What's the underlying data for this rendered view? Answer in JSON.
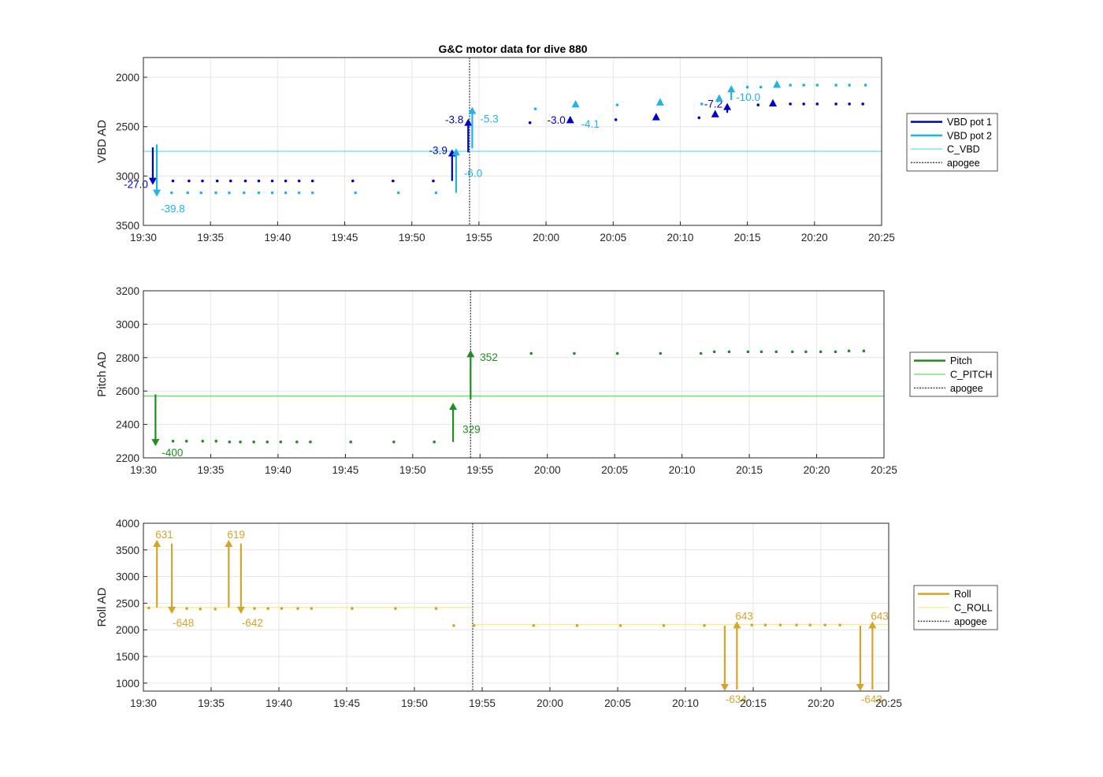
{
  "figure": {
    "title": "G&C motor data for dive 880"
  },
  "chart_data": [
    {
      "type": "scatter",
      "id": "vbd",
      "ylabel": "VBD AD",
      "xlim": [
        "19:30",
        "20:25"
      ],
      "ylim": [
        1800,
        3500
      ],
      "y_reversed": true,
      "xticks": [
        "19:30",
        "19:35",
        "19:40",
        "19:45",
        "19:50",
        "19:55",
        "20:00",
        "20:05",
        "20:10",
        "20:15",
        "20:20",
        "20:25"
      ],
      "yticks": [
        2000,
        2500,
        3000,
        3500
      ],
      "grid": true,
      "legend_position": "outside-right",
      "legend": [
        {
          "label": "VBD pot 1",
          "style": "thick",
          "color": "#0000cd"
        },
        {
          "label": "VBD pot 2",
          "style": "thick",
          "color": "#1eb4e6"
        },
        {
          "label": "C_VBD",
          "style": "thin",
          "color": "#66e0e8"
        },
        {
          "label": "apogee",
          "style": "dotted",
          "color": "#444444"
        }
      ],
      "apogee_x": "19:54.3",
      "reference_lines": [
        {
          "name": "C_VBD",
          "y": 2750,
          "from": "19:30",
          "to": "20:25",
          "color": "#66e0e8"
        }
      ],
      "series": [
        {
          "name": "VBD pot 1",
          "color": "#0000cd",
          "points": [
            [
              "19:32.2",
              3050
            ],
            [
              "19:33.4",
              3050
            ],
            [
              "19:34.4",
              3050
            ],
            [
              "19:35.5",
              3050
            ],
            [
              "19:36.5",
              3050
            ],
            [
              "19:37.6",
              3050
            ],
            [
              "19:38.6",
              3050
            ],
            [
              "19:39.6",
              3050
            ],
            [
              "19:40.6",
              3050
            ],
            [
              "19:41.6",
              3050
            ],
            [
              "19:42.6",
              3050
            ],
            [
              "19:45.6",
              3050
            ],
            [
              "19:48.6",
              3050
            ],
            [
              "19:51.6",
              3050
            ],
            [
              "19:58.8",
              2460
            ],
            [
              "20:05.2",
              2430
            ],
            [
              "20:11.4",
              2410
            ],
            [
              "20:15.8",
              2280
            ],
            [
              "20:18.2",
              2270
            ],
            [
              "20:19.2",
              2270
            ],
            [
              "20:20.2",
              2270
            ],
            [
              "20:21.6",
              2270
            ],
            [
              "20:22.6",
              2270
            ],
            [
              "20:23.6",
              2270
            ]
          ],
          "markers": [
            [
              "20:01.8",
              2430
            ],
            [
              "20:08.2",
              2400
            ],
            [
              "20:12.6",
              2370
            ],
            [
              "20:16.9",
              2260
            ]
          ],
          "moves": [
            {
              "x": "19:30.7",
              "y0": 2710,
              "y1": 3090,
              "label": "-27.0"
            },
            {
              "x": "19:53.0",
              "y0": 3050,
              "y1": 2730,
              "label": "-3.9"
            },
            {
              "x": "19:54.2",
              "y0": 2760,
              "y1": 2420,
              "label": "-3.8"
            },
            {
              "x": "20:01.8",
              "y0": null,
              "y1": 2430,
              "label": "-3.0"
            },
            {
              "x": "20:13.5",
              "y0": 2360,
              "y1": 2260,
              "label": "-7.2"
            }
          ]
        },
        {
          "name": "VBD pot 2",
          "color": "#1eb4e6",
          "points": [
            [
              "19:32.1",
              3170
            ],
            [
              "19:33.3",
              3170
            ],
            [
              "19:34.3",
              3170
            ],
            [
              "19:35.4",
              3170
            ],
            [
              "19:36.4",
              3170
            ],
            [
              "19:37.5",
              3170
            ],
            [
              "19:38.6",
              3170
            ],
            [
              "19:39.6",
              3170
            ],
            [
              "19:40.6",
              3170
            ],
            [
              "19:41.6",
              3170
            ],
            [
              "19:42.6",
              3170
            ],
            [
              "19:45.8",
              3170
            ],
            [
              "19:49.0",
              3170
            ],
            [
              "19:51.8",
              3170
            ],
            [
              "19:59.2",
              2320
            ],
            [
              "20:05.3",
              2280
            ],
            [
              "20:11.6",
              2270
            ],
            [
              "20:15.0",
              2100
            ],
            [
              "20:16.0",
              2100
            ],
            [
              "20:18.2",
              2080
            ],
            [
              "20:19.2",
              2080
            ],
            [
              "20:20.2",
              2080
            ],
            [
              "20:21.6",
              2080
            ],
            [
              "20:22.6",
              2080
            ],
            [
              "20:23.8",
              2080
            ]
          ],
          "markers": [
            [
              "20:02.2",
              2270
            ],
            [
              "20:08.5",
              2250
            ],
            [
              "20:12.9",
              2210
            ],
            [
              "20:17.2",
              2070
            ]
          ],
          "moves": [
            {
              "x": "19:31.0",
              "y0": 2680,
              "y1": 3210,
              "label": "-39.8"
            },
            {
              "x": "19:53.3",
              "y0": 3170,
              "y1": 2720,
              "label": "-6.0"
            },
            {
              "x": "19:54.5",
              "y0": 2720,
              "y1": 2300,
              "label": "-5.3"
            },
            {
              "x": "20:02.2",
              "y0": null,
              "y1": 2270,
              "label": "-4.1"
            },
            {
              "x": "20:13.8",
              "y0": 2230,
              "y1": 2080,
              "label": "-10.0"
            }
          ]
        }
      ]
    },
    {
      "type": "scatter",
      "id": "pitch",
      "ylabel": "Pitch AD",
      "xlim": [
        "19:30",
        "20:25"
      ],
      "ylim": [
        2200,
        3200
      ],
      "y_reversed": false,
      "xticks": [
        "19:30",
        "19:35",
        "19:40",
        "19:45",
        "19:50",
        "19:55",
        "20:00",
        "20:05",
        "20:10",
        "20:15",
        "20:20",
        "20:25"
      ],
      "yticks": [
        2200,
        2400,
        2600,
        2800,
        3000,
        3200
      ],
      "grid": true,
      "legend_position": "outside-right",
      "legend": [
        {
          "label": "Pitch",
          "style": "thick",
          "color": "#228b22"
        },
        {
          "label": "C_PITCH",
          "style": "thin",
          "color": "#66dd66"
        },
        {
          "label": "apogee",
          "style": "dotted",
          "color": "#444444"
        }
      ],
      "apogee_x": "19:54.3",
      "reference_lines": [
        {
          "name": "C_PITCH",
          "y": 2570,
          "from": "19:30",
          "to": "20:25",
          "color": "#66dd66"
        }
      ],
      "series": [
        {
          "name": "Pitch",
          "color": "#228b22",
          "points": [
            [
              "19:32.2",
              2300
            ],
            [
              "19:33.2",
              2300
            ],
            [
              "19:34.4",
              2300
            ],
            [
              "19:35.4",
              2300
            ],
            [
              "19:36.4",
              2295
            ],
            [
              "19:37.2",
              2295
            ],
            [
              "19:38.2",
              2295
            ],
            [
              "19:39.2",
              2295
            ],
            [
              "19:40.2",
              2295
            ],
            [
              "19:41.4",
              2295
            ],
            [
              "19:42.4",
              2295
            ],
            [
              "19:45.4",
              2295
            ],
            [
              "19:48.6",
              2295
            ],
            [
              "19:51.6",
              2295
            ],
            [
              "19:58.8",
              2825
            ],
            [
              "20:02.0",
              2825
            ],
            [
              "20:05.2",
              2825
            ],
            [
              "20:08.4",
              2825
            ],
            [
              "20:11.4",
              2825
            ],
            [
              "20:12.4",
              2835
            ],
            [
              "20:13.5",
              2835
            ],
            [
              "20:14.9",
              2835
            ],
            [
              "20:15.9",
              2835
            ],
            [
              "20:17.0",
              2835
            ],
            [
              "20:18.2",
              2835
            ],
            [
              "20:19.2",
              2835
            ],
            [
              "20:20.3",
              2835
            ],
            [
              "20:21.4",
              2835
            ],
            [
              "20:22.4",
              2840
            ],
            [
              "20:23.5",
              2840
            ]
          ],
          "markers": [],
          "moves": [
            {
              "x": "19:30.9",
              "y0": 2580,
              "y1": 2270,
              "label": "-400"
            },
            {
              "x": "19:53.0",
              "y0": 2295,
              "y1": 2530,
              "label": "329"
            },
            {
              "x": "19:54.3",
              "y0": 2550,
              "y1": 2845,
              "label": "352"
            }
          ]
        }
      ]
    },
    {
      "type": "scatter",
      "id": "roll",
      "ylabel": "Roll AD",
      "xlim": [
        "19:30",
        "20:25"
      ],
      "ylim": [
        850,
        4000
      ],
      "y_reversed": false,
      "xticks": [
        "19:30",
        "19:35",
        "19:40",
        "19:45",
        "19:50",
        "19:55",
        "20:00",
        "20:05",
        "20:10",
        "20:15",
        "20:20",
        "20:25"
      ],
      "yticks": [
        1000,
        1500,
        2000,
        2500,
        3000,
        3500,
        4000
      ],
      "grid": true,
      "legend_position": "outside-right",
      "legend": [
        {
          "label": "Roll",
          "style": "thick",
          "color": "#d4a52a"
        },
        {
          "label": "C_ROLL",
          "style": "thin",
          "color": "#f5ec8c"
        },
        {
          "label": "apogee",
          "style": "dotted",
          "color": "#444444"
        }
      ],
      "apogee_x": "19:54.3",
      "reference_lines": [
        {
          "name": "C_ROLL",
          "y": 2420,
          "from": "19:30",
          "to": "19:54.3",
          "color": "#f5ec8c"
        },
        {
          "name": "C_ROLL",
          "y": 2100,
          "from": "19:54.3",
          "to": "20:25",
          "color": "#f5ec8c"
        }
      ],
      "series": [
        {
          "name": "Roll",
          "color": "#d4a52a",
          "points": [
            [
              "19:30.4",
              2410
            ],
            [
              "19:33.2",
              2400
            ],
            [
              "19:34.2",
              2390
            ],
            [
              "19:35.3",
              2390
            ],
            [
              "19:38.2",
              2400
            ],
            [
              "19:39.2",
              2400
            ],
            [
              "19:40.2",
              2400
            ],
            [
              "19:41.4",
              2400
            ],
            [
              "19:42.4",
              2400
            ],
            [
              "19:45.4",
              2400
            ],
            [
              "19:48.6",
              2400
            ],
            [
              "19:51.6",
              2400
            ],
            [
              "19:52.9",
              2080
            ],
            [
              "19:54.4",
              2080
            ],
            [
              "19:58.8",
              2080
            ],
            [
              "20:02.0",
              2080
            ],
            [
              "20:05.2",
              2080
            ],
            [
              "20:08.4",
              2080
            ],
            [
              "20:11.4",
              2080
            ],
            [
              "20:14.9",
              2090
            ],
            [
              "20:15.9",
              2090
            ],
            [
              "20:17.0",
              2090
            ],
            [
              "20:18.2",
              2090
            ],
            [
              "20:19.2",
              2090
            ],
            [
              "20:20.3",
              2090
            ],
            [
              "20:21.4",
              2090
            ]
          ],
          "markers": [],
          "moves": [
            {
              "x": "19:31.0",
              "y0": 2420,
              "y1": 3690,
              "label": "631"
            },
            {
              "x": "19:32.1",
              "y0": 3620,
              "y1": 2300,
              "label": "-648"
            },
            {
              "x": "19:36.3",
              "y0": 2420,
              "y1": 3690,
              "label": "619"
            },
            {
              "x": "19:37.2",
              "y0": 3620,
              "y1": 2300,
              "label": "-642"
            },
            {
              "x": "20:12.9",
              "y0": 2080,
              "y1": 850,
              "label": "-634"
            },
            {
              "x": "20:13.8",
              "y0": 880,
              "y1": 2160,
              "label": "643"
            },
            {
              "x": "20:22.9",
              "y0": 2080,
              "y1": 850,
              "label": "-643"
            },
            {
              "x": "20:23.8",
              "y0": 880,
              "y1": 2160,
              "label": "643"
            }
          ]
        }
      ]
    }
  ]
}
